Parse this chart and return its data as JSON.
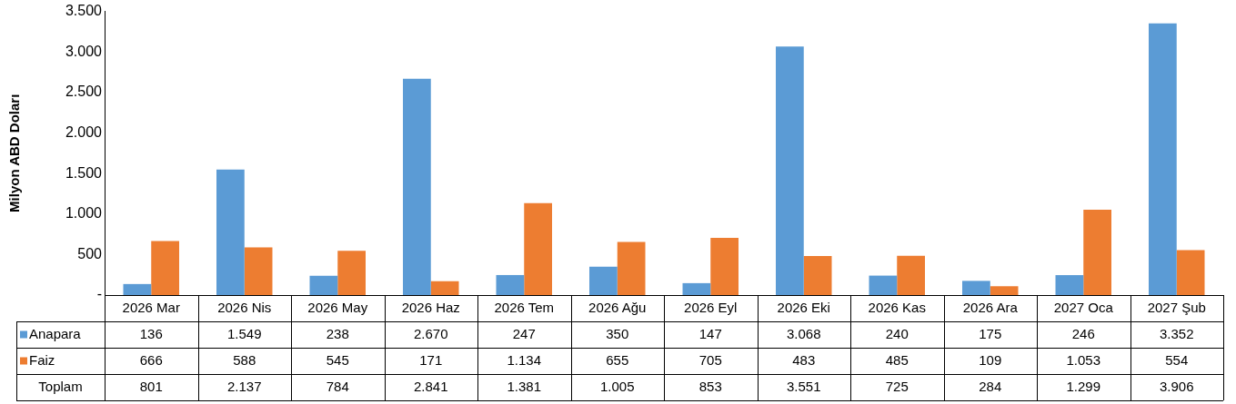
{
  "chart_data": {
    "type": "bar",
    "ylabel": "Milyon ABD Doları",
    "categories": [
      "2026 Mar",
      "2026 Nis",
      "2026 May",
      "2026 Haz",
      "2026 Tem",
      "2026 Ağu",
      "2026 Eyl",
      "2026 Eki",
      "2026 Kas",
      "2026 Ara",
      "2027 Oca",
      "2027 Şub"
    ],
    "series": [
      {
        "name": "Anapara",
        "color": "#5b9bd5",
        "values": [
          136,
          1549,
          238,
          2670,
          247,
          350,
          147,
          3068,
          240,
          175,
          246,
          3352
        ],
        "value_labels": [
          "136",
          "1.549",
          "238",
          "2.670",
          "247",
          "350",
          "147",
          "3.068",
          "240",
          "175",
          "246",
          "3.352"
        ]
      },
      {
        "name": "Faiz",
        "color": "#ed7d31",
        "values": [
          666,
          588,
          545,
          171,
          1134,
          655,
          705,
          483,
          485,
          109,
          1053,
          554
        ],
        "value_labels": [
          "666",
          "588",
          "545",
          "171",
          "1.134",
          "655",
          "705",
          "483",
          "485",
          "109",
          "1.053",
          "554"
        ]
      }
    ],
    "annotations": [
      "Toplam",
      "801",
      "2.137",
      "784",
      "2.841",
      "1.381",
      "1.005",
      "853",
      "3.551",
      "725",
      "284",
      "1.299",
      "3.906"
    ],
    "ylim": [
      0,
      3500
    ],
    "yticks": [
      {
        "value": 0,
        "label": "-"
      },
      {
        "value": 500,
        "label": "500"
      },
      {
        "value": 1000,
        "label": "1.000"
      },
      {
        "value": 1500,
        "label": "1.500"
      },
      {
        "value": 2000,
        "label": "2.000"
      },
      {
        "value": 2500,
        "label": "2.500"
      },
      {
        "value": 3000,
        "label": "3.000"
      },
      {
        "value": 3500,
        "label": "3.500"
      }
    ],
    "grid": false,
    "legend": "bottom left"
  }
}
